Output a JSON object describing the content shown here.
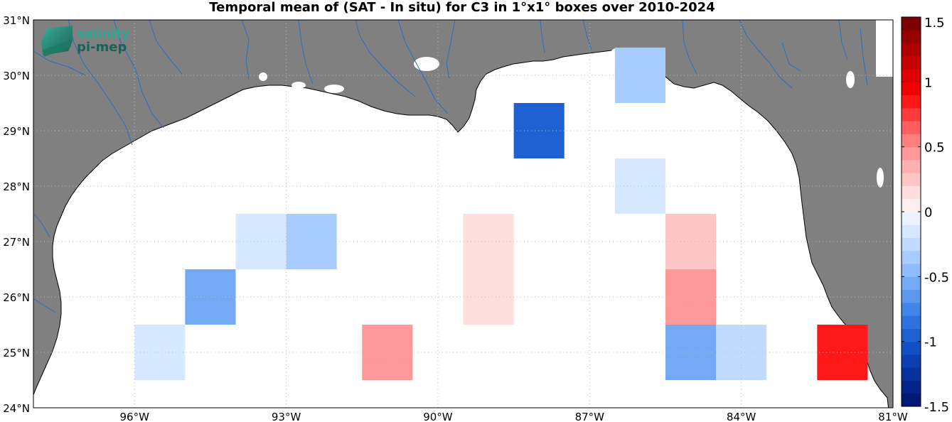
{
  "title": "Temporal mean of (SAT - In situ) for C3 in 1°x1° boxes over 2010-2024",
  "logo": {
    "line1": "salinity",
    "line2": "pi-mep"
  },
  "map": {
    "lon_range": [
      -98,
      -81
    ],
    "lat_range": [
      24,
      31
    ],
    "lon_ticks": [
      {
        "value": -96,
        "label": "96°W"
      },
      {
        "value": -93,
        "label": "93°W"
      },
      {
        "value": -90,
        "label": "90°W"
      },
      {
        "value": -87,
        "label": "87°W"
      },
      {
        "value": -84,
        "label": "84°W"
      },
      {
        "value": -81,
        "label": "81°W"
      }
    ],
    "lat_ticks": [
      {
        "value": 24,
        "label": "24°N"
      },
      {
        "value": 25,
        "label": "25°N"
      },
      {
        "value": 26,
        "label": "26°N"
      },
      {
        "value": 27,
        "label": "27°N"
      },
      {
        "value": 28,
        "label": "28°N"
      },
      {
        "value": 29,
        "label": "29°N"
      },
      {
        "value": 30,
        "label": "30°N"
      },
      {
        "value": 31,
        "label": "31°N"
      }
    ],
    "land_color": "#808080",
    "ocean_color": "#ffffff",
    "river_color": "#2a6ebb",
    "grid": "dotted"
  },
  "chart_data": {
    "type": "heatmap",
    "title": "Temporal mean of (SAT - In situ) for C3 in 1°x1° boxes over 2010-2024",
    "box_size_deg": 1,
    "cells": [
      {
        "lon": -95.5,
        "lat": 25.0,
        "value": -0.15
      },
      {
        "lon": -94.5,
        "lat": 26.0,
        "value": -0.5
      },
      {
        "lon": -93.5,
        "lat": 27.0,
        "value": -0.15
      },
      {
        "lon": -92.5,
        "lat": 27.0,
        "value": -0.35
      },
      {
        "lon": -91.0,
        "lat": 25.0,
        "value": 0.4
      },
      {
        "lon": -89.0,
        "lat": 26.0,
        "value": 0.15
      },
      {
        "lon": -89.0,
        "lat": 27.0,
        "value": 0.15
      },
      {
        "lon": -88.0,
        "lat": 29.0,
        "value": -0.95
      },
      {
        "lon": -86.0,
        "lat": 30.0,
        "value": -0.35
      },
      {
        "lon": -86.0,
        "lat": 28.0,
        "value": -0.15
      },
      {
        "lon": -85.0,
        "lat": 27.0,
        "value": 0.25
      },
      {
        "lon": -85.0,
        "lat": 26.0,
        "value": 0.4
      },
      {
        "lon": -85.0,
        "lat": 25.0,
        "value": -0.55
      },
      {
        "lon": -84.0,
        "lat": 25.0,
        "value": -0.25
      },
      {
        "lon": -82.0,
        "lat": 25.0,
        "value": 0.85
      }
    ],
    "colorbar": {
      "range": [
        -1.5,
        1.5
      ],
      "ticks": [
        {
          "value": 1.5,
          "label": "1.5"
        },
        {
          "value": 1,
          "label": "1"
        },
        {
          "value": 0.5,
          "label": "0.5"
        },
        {
          "value": 0,
          "label": "0"
        },
        {
          "value": -0.5,
          "label": "-0.5"
        },
        {
          "value": -1,
          "label": "-1"
        },
        {
          "value": -1.5,
          "label": "-1.5"
        }
      ]
    }
  }
}
